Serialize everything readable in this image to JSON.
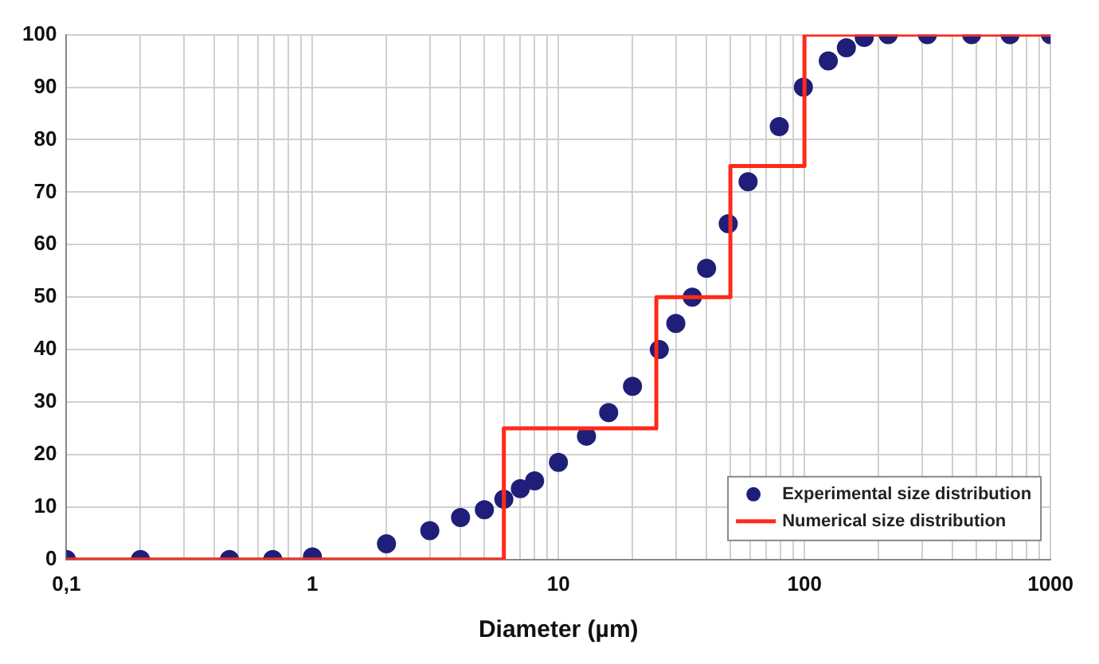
{
  "chart_data": {
    "type": "scatter",
    "xlabel": "Diameter (µm)",
    "log": "x",
    "xlim": [
      0.1,
      1000
    ],
    "ylim": [
      0,
      100
    ],
    "xticks": [
      {
        "value": 0.1,
        "label": "0,1"
      },
      {
        "value": 0.2,
        "label": null
      },
      {
        "value": 0.3,
        "label": null
      },
      {
        "value": 0.4,
        "label": null
      },
      {
        "value": 0.5,
        "label": null
      },
      {
        "value": 0.6,
        "label": null
      },
      {
        "value": 0.7,
        "label": null
      },
      {
        "value": 0.8,
        "label": null
      },
      {
        "value": 0.9,
        "label": null
      },
      1,
      {
        "value": 2,
        "label": null
      },
      {
        "value": 3,
        "label": null
      },
      {
        "value": 4,
        "label": null
      },
      {
        "value": 5,
        "label": null
      },
      {
        "value": 6,
        "label": null
      },
      {
        "value": 7,
        "label": null
      },
      {
        "value": 8,
        "label": null
      },
      {
        "value": 9,
        "label": null
      },
      10,
      {
        "value": 20,
        "label": null
      },
      {
        "value": 30,
        "label": null
      },
      {
        "value": 40,
        "label": null
      },
      {
        "value": 50,
        "label": null
      },
      {
        "value": 60,
        "label": null
      },
      {
        "value": 70,
        "label": null
      },
      {
        "value": 80,
        "label": null
      },
      {
        "value": 90,
        "label": null
      },
      100,
      {
        "value": 200,
        "label": null
      },
      {
        "value": 300,
        "label": null
      },
      {
        "value": 400,
        "label": null
      },
      {
        "value": 500,
        "label": null
      },
      {
        "value": 600,
        "label": null
      },
      {
        "value": 700,
        "label": null
      },
      {
        "value": 800,
        "label": null
      },
      {
        "value": 900,
        "label": null
      },
      1000
    ],
    "yticks": [
      0,
      10,
      20,
      30,
      40,
      50,
      60,
      70,
      80,
      90,
      100
    ],
    "grid": true,
    "legend": "bottom right",
    "series": [
      {
        "name": "Experimental size distribution",
        "marker": "circle",
        "color": "#1f1f7a",
        "x": [
          0.1,
          0.2,
          0.46,
          0.69,
          1,
          2,
          3,
          4,
          5,
          6,
          7,
          8,
          10,
          13,
          16,
          20,
          25.7,
          30,
          35,
          40,
          49,
          59,
          79,
          99,
          125,
          148,
          175,
          219,
          316,
          478,
          685,
          1000
        ],
        "values": [
          0,
          0,
          0,
          0,
          0.5,
          3,
          5.5,
          8,
          9.5,
          11.5,
          13.5,
          15,
          18.5,
          23.5,
          28,
          33,
          40,
          45,
          50,
          55.5,
          64,
          72,
          82.5,
          90,
          95,
          97.5,
          99.5,
          100,
          100,
          100,
          100,
          100
        ]
      },
      {
        "name": "Numerical size distribution",
        "type": "step",
        "marker": "none",
        "line_style": "solid",
        "color": "#ff2a1a",
        "x": [
          0.1,
          6,
          25,
          50,
          100,
          1000
        ],
        "values": [
          0,
          25,
          50,
          75,
          100,
          100
        ]
      }
    ]
  }
}
